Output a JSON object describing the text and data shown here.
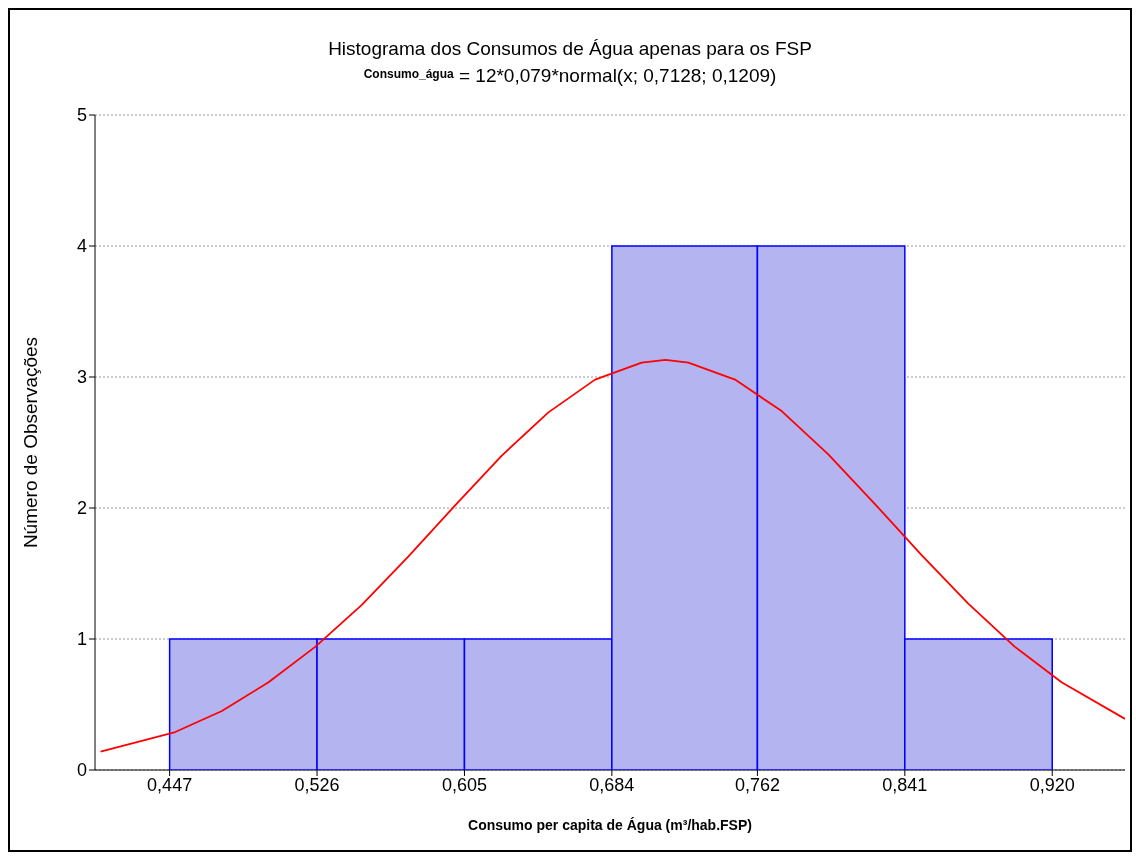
{
  "chart_data": {
    "type": "histogram",
    "title": "Histograma dos Consumos de Água apenas para os FSP",
    "subtitle": "$^{Consumo_água}$ = 12*0,079*normal(x; 0,7128; 0,1209)",
    "xlabel": "Consumo per capita de Água (m³/hab.FSP)",
    "ylabel": "Número de Observações",
    "bins": [
      0.447,
      0.526,
      0.605,
      0.684,
      0.762,
      0.841,
      0.92
    ],
    "values": [
      1,
      1,
      1,
      4,
      4,
      1
    ],
    "color": "#b4b4f0",
    "series": [
      {
        "type": "line",
        "color": "#ff0000",
        "x": [
          0.41,
          0.45,
          0.475,
          0.5,
          0.525,
          0.55,
          0.575,
          0.6,
          0.625,
          0.65,
          0.675,
          0.7,
          0.7128,
          0.725,
          0.75,
          0.775,
          0.8,
          0.825,
          0.85,
          0.875,
          0.9,
          0.925,
          0.959
        ],
        "values": [
          0.14,
          0.29,
          0.45,
          0.67,
          0.94,
          1.26,
          1.63,
          2.02,
          2.4,
          2.73,
          2.98,
          3.11,
          3.13,
          3.11,
          2.98,
          2.74,
          2.41,
          2.03,
          1.64,
          1.27,
          0.94,
          0.67,
          0.39
        ]
      }
    ],
    "xlim": [
      0.407,
      0.959
    ],
    "xticks": [
      {
        "value": 0.447,
        "label": "0,447"
      },
      {
        "value": 0.526,
        "label": "0,526"
      },
      {
        "value": 0.605,
        "label": "0,605"
      },
      {
        "value": 0.684,
        "label": "0,684"
      },
      {
        "value": 0.762,
        "label": "0,762"
      },
      {
        "value": 0.841,
        "label": "0,841"
      },
      {
        "value": 0.92,
        "label": "0,920"
      }
    ],
    "ylim": [
      0,
      5
    ],
    "yticks": [
      0,
      1,
      2,
      3,
      4,
      5
    ],
    "grid": "y"
  }
}
